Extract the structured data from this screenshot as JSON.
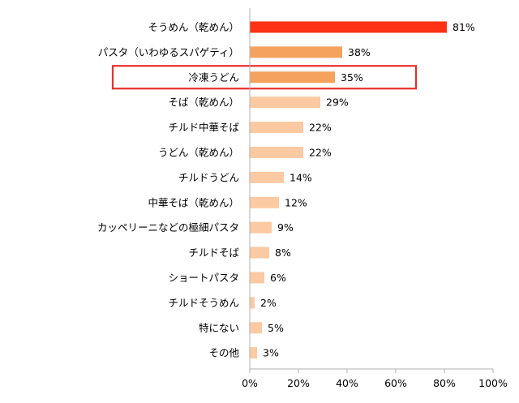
{
  "chart_data": {
    "type": "bar",
    "orientation": "horizontal",
    "categories": [
      "そうめん（乾めん）",
      "パスタ（いわゆるスパゲティ）",
      "冷凍うどん",
      "そば（乾めん）",
      "チルド中華そば",
      "うどん（乾めん）",
      "チルドうどん",
      "中華そば（乾めん）",
      "カッペリーニなどの極細パスタ",
      "チルドそば",
      "ショートパスタ",
      "チルドそうめん",
      "特にない",
      "その他"
    ],
    "values": [
      81,
      38,
      35,
      29,
      22,
      22,
      14,
      12,
      9,
      8,
      6,
      2,
      5,
      3
    ],
    "value_labels": [
      "81%",
      "38%",
      "35%",
      "29%",
      "22%",
      "22%",
      "14%",
      "12%",
      "9%",
      "8%",
      "6%",
      "2%",
      "5%",
      "3%"
    ],
    "xlim": [
      0,
      100
    ],
    "x_ticks": [
      "0%",
      "20%",
      "40%",
      "60%",
      "80%",
      "100%"
    ],
    "grid": false,
    "highlighted_category": "冷凍うどん",
    "colors": {
      "top": "#fb3214",
      "mid": "#f5a25f",
      "low": "#fbc9a2",
      "highlight_box": "#e8302b",
      "axis": "#b0b0b0",
      "text": "#000000"
    },
    "color_groups": [
      "top",
      "mid",
      "mid",
      "low",
      "low",
      "low",
      "low",
      "low",
      "low",
      "low",
      "low",
      "low",
      "low",
      "low"
    ]
  }
}
